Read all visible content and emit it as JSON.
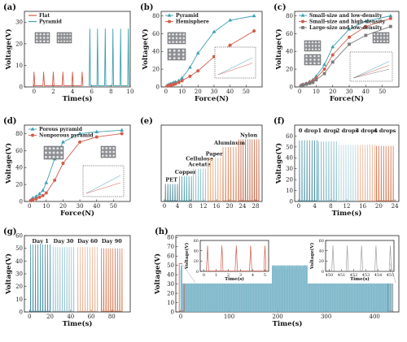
{
  "panels": [
    {
      "id": "a",
      "label": "(a)",
      "type": "line",
      "xlabel": "Time(s)",
      "ylabel": "Voltage(V)",
      "xlim": [
        -1,
        10
      ],
      "ylim": [
        0,
        35
      ],
      "xticks": [
        0,
        2,
        4,
        6,
        8,
        10
      ],
      "yticks": [
        0,
        10,
        20,
        30
      ],
      "legend": [
        {
          "name": "Flat",
          "color": "#d45b4b"
        },
        {
          "name": "Pyramid",
          "color": "#3fa0b0"
        }
      ],
      "pulses": [
        {
          "name": "Flat",
          "color": "#d45b4b",
          "start": 0.0,
          "end": 5.0,
          "count": 6,
          "peak": 7
        },
        {
          "name": "Pyramid",
          "color": "#3fa0b0",
          "start": 5.8,
          "end": 9.8,
          "count": 6,
          "peak": 27
        }
      ]
    },
    {
      "id": "b",
      "label": "(b)",
      "type": "line",
      "xlabel": "Force(N)",
      "ylabel": "Voltage(V)",
      "xlim": [
        -3,
        60
      ],
      "ylim": [
        0,
        85
      ],
      "xticks": [
        0,
        10,
        20,
        30,
        40,
        50
      ],
      "yticks": [
        0,
        20,
        40,
        60,
        80
      ],
      "legend": [
        {
          "name": "Pyramid",
          "color": "#3fa0b0",
          "marker": "triangle"
        },
        {
          "name": "Hemisphere",
          "color": "#d45b4b",
          "marker": "circle"
        }
      ],
      "series": [
        {
          "name": "Pyramid",
          "color": "#3fa0b0",
          "marker": "triangle",
          "x": [
            1,
            2,
            3,
            4,
            5,
            6,
            8,
            10,
            15,
            20,
            30,
            40,
            55
          ],
          "y": [
            2,
            3,
            3.5,
            4,
            5,
            5.5,
            7,
            10,
            22,
            38,
            62,
            75,
            80
          ]
        },
        {
          "name": "Hemisphere",
          "color": "#d45b4b",
          "marker": "circle",
          "x": [
            1,
            2,
            3,
            4,
            5,
            6,
            8,
            10,
            15,
            20,
            30,
            40,
            55
          ],
          "y": [
            1,
            1.5,
            2,
            2.5,
            3,
            3.5,
            5,
            7,
            12,
            18,
            34,
            47,
            63
          ]
        }
      ]
    },
    {
      "id": "c",
      "label": "(c)",
      "type": "line",
      "xlabel": "Force(N)",
      "ylabel": "Voltage(V)",
      "xlim": [
        -3,
        60
      ],
      "ylim": [
        0,
        85
      ],
      "xticks": [
        0,
        10,
        20,
        30,
        40,
        50
      ],
      "yticks": [
        0,
        20,
        40,
        60,
        80
      ],
      "legend": [
        {
          "name": "Small-size and low-density",
          "color": "#3fa0b0",
          "marker": "triangle"
        },
        {
          "name": "Small-size and high-density",
          "color": "#d45b4b",
          "marker": "circle"
        },
        {
          "name": "Large-size and low-density",
          "color": "#7a7a7a",
          "marker": "square"
        }
      ],
      "series": [
        {
          "name": "Small-size and low-density",
          "color": "#3fa0b0",
          "marker": "triangle",
          "x": [
            1,
            2,
            4,
            6,
            8,
            10,
            15,
            20,
            30,
            40,
            55
          ],
          "y": [
            2,
            3,
            4,
            6,
            8,
            12,
            25,
            45,
            65,
            74,
            80
          ]
        },
        {
          "name": "Small-size and high-density",
          "color": "#d45b4b",
          "marker": "circle",
          "x": [
            1,
            2,
            4,
            6,
            8,
            10,
            15,
            20,
            30,
            40,
            55
          ],
          "y": [
            1.5,
            2.5,
            3.5,
            5,
            7,
            10,
            20,
            36,
            56,
            68,
            77
          ]
        },
        {
          "name": "Large-size and low-density",
          "color": "#7a7a7a",
          "marker": "square",
          "x": [
            1,
            2,
            4,
            6,
            8,
            10,
            15,
            20,
            30,
            40,
            55
          ],
          "y": [
            1,
            2,
            3,
            4,
            5,
            8,
            15,
            28,
            48,
            58,
            68
          ]
        }
      ]
    },
    {
      "id": "d",
      "label": "(d)",
      "type": "line",
      "xlabel": "Force(N)",
      "ylabel": "Voltage(V)",
      "xlim": [
        -3,
        60
      ],
      "ylim": [
        0,
        90
      ],
      "xticks": [
        0,
        10,
        20,
        30,
        40,
        50
      ],
      "yticks": [
        0,
        20,
        40,
        60,
        80
      ],
      "legend": [
        {
          "name": "Porous pyramid",
          "color": "#3fa0b0",
          "marker": "triangle"
        },
        {
          "name": "Nonporous pyramid",
          "color": "#d45b4b",
          "marker": "circle"
        }
      ],
      "series": [
        {
          "name": "Porous pyramid",
          "color": "#3fa0b0",
          "marker": "triangle",
          "x": [
            1,
            2,
            4,
            6,
            8,
            10,
            15,
            20,
            30,
            40,
            55
          ],
          "y": [
            2,
            4,
            6,
            9,
            13,
            22,
            50,
            70,
            80,
            82,
            84
          ]
        },
        {
          "name": "Nonporous pyramid",
          "color": "#d45b4b",
          "marker": "circle",
          "x": [
            1,
            2,
            4,
            6,
            8,
            10,
            15,
            20,
            30,
            40,
            55
          ],
          "y": [
            1,
            2,
            3,
            5,
            7,
            10,
            25,
            45,
            70,
            76,
            80
          ]
        }
      ]
    },
    {
      "id": "e",
      "label": "(e)",
      "type": "line",
      "xlabel": "",
      "ylabel": "",
      "xlim": [
        -1,
        30
      ],
      "ylim": [
        0,
        70
      ],
      "xticks": [
        0,
        4,
        8,
        12,
        16,
        20,
        24,
        28
      ],
      "yticks": [],
      "groups": [
        {
          "name": "PET",
          "color": "#3f7f8f",
          "start": 0.3,
          "end": 4.0,
          "peak": 16
        },
        {
          "name": "Copper",
          "color": "#4f9fb0",
          "start": 4.6,
          "end": 8.3,
          "peak": 23
        },
        {
          "name": "Cellulose Acetate",
          "color": "#93c6cc",
          "start": 8.9,
          "end": 12.6,
          "peak": 30
        },
        {
          "name": "Paper",
          "color": "#e8b088",
          "start": 13.4,
          "end": 17.2,
          "peak": 40
        },
        {
          "name": "Aluminum",
          "color": "#dc8a60",
          "start": 18.0,
          "end": 22.0,
          "peak": 50
        },
        {
          "name": "Nylon",
          "color": "#c86a4a",
          "start": 22.8,
          "end": 29.0,
          "peak": 57
        }
      ]
    },
    {
      "id": "f",
      "label": "(f)",
      "type": "line",
      "xlabel": "Time(s)",
      "ylabel": "Voltage(V)",
      "xlim": [
        -1,
        25
      ],
      "ylim": [
        0,
        70
      ],
      "xticks": [
        0,
        4,
        8,
        12,
        16,
        20,
        24
      ],
      "yticks": [
        0,
        10,
        20,
        30,
        40,
        50,
        60
      ],
      "groups": [
        {
          "name": "0 drop",
          "color": "#4a93a8",
          "start": 0.2,
          "end": 4.6,
          "peak": 56
        },
        {
          "name": "1 drop",
          "color": "#7fb8c6",
          "start": 5.0,
          "end": 9.4,
          "peak": 55
        },
        {
          "name": "2 drops",
          "color": "#b6d6dc",
          "start": 10.0,
          "end": 14.2,
          "peak": 52
        },
        {
          "name": "3 drops",
          "color": "#eab79a",
          "start": 14.8,
          "end": 19.0,
          "peak": 52
        },
        {
          "name": "4 drops",
          "color": "#d5764f",
          "start": 19.4,
          "end": 23.6,
          "peak": 51
        }
      ]
    },
    {
      "id": "g",
      "label": "(g)",
      "type": "line",
      "xlabel": "Time(s)",
      "ylabel": "Voltage(V)",
      "xlim": [
        -5,
        98
      ],
      "ylim": [
        0,
        60
      ],
      "xticks": [
        0,
        20,
        40,
        60,
        80
      ],
      "yticks": [
        0,
        10,
        20,
        30,
        40,
        50,
        60
      ],
      "groups": [
        {
          "name": "Day 1",
          "color": "#4a93a8",
          "start": 1,
          "end": 20,
          "peak": 53
        },
        {
          "name": "Day 30",
          "color": "#9cc7d2",
          "start": 23,
          "end": 43,
          "peak": 51
        },
        {
          "name": "Day 60",
          "color": "#eab79a",
          "start": 47,
          "end": 66,
          "peak": 51
        },
        {
          "name": "Day 90",
          "color": "#d5764f",
          "start": 70,
          "end": 90,
          "peak": 50
        }
      ]
    },
    {
      "id": "h",
      "label": "(h)",
      "type": "line",
      "xlabel": "Time(s)",
      "ylabel": "Voltage(V)",
      "xlim": [
        -10,
        450
      ],
      "ylim": [
        0,
        82
      ],
      "xticks": [
        0,
        100,
        200,
        300,
        400
      ],
      "yticks": [
        0,
        10,
        20,
        30,
        40,
        50,
        60,
        70,
        80
      ],
      "main": {
        "color": "#7eb9cc",
        "start": 0,
        "end": 436,
        "peak": 50
      },
      "insets": [
        {
          "ylabel": "Voltage(V)",
          "xlabel": "Time(s)",
          "color": "#d45b4b",
          "xlim": [
            -0.3,
            5.3
          ],
          "ylim": [
            0,
            60
          ],
          "xticks": [
            0,
            1,
            2,
            3,
            4,
            5
          ],
          "yticks": [
            0,
            20,
            40,
            60
          ],
          "start": 0.3,
          "end": 5.0,
          "count": 5,
          "peak": 50
        },
        {
          "ylabel": "Voltage(V)",
          "xlabel": "Time(s)",
          "color": "#a0a0a0",
          "xlim": [
            449.7,
            455.3
          ],
          "ylim": [
            0,
            60
          ],
          "xticks": [
            450,
            451,
            452,
            453,
            454,
            455
          ],
          "yticks": [
            0,
            20,
            40,
            60
          ],
          "start": 450.3,
          "end": 455.0,
          "count": 5,
          "peak": 50
        }
      ]
    }
  ]
}
